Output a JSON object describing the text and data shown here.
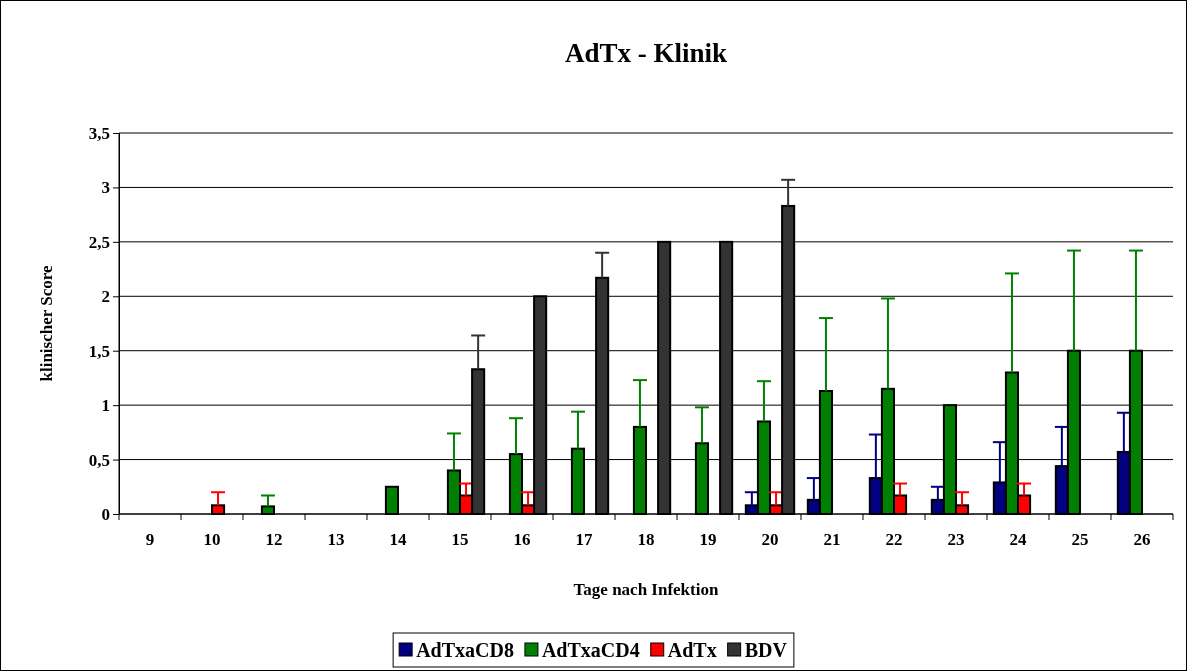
{
  "chart_data": {
    "type": "bar",
    "title": "AdTx - Klinik",
    "xlabel": "Tage nach Infektion",
    "ylabel": "klinischer Score",
    "categories": [
      "9",
      "10",
      "12",
      "13",
      "14",
      "15",
      "16",
      "17",
      "18",
      "19",
      "20",
      "21",
      "22",
      "23",
      "24",
      "25",
      "26"
    ],
    "series": [
      {
        "name": "AdTxaCD8",
        "color": "#000080",
        "values": [
          0,
          0,
          0,
          0,
          0,
          0,
          0,
          0,
          0,
          0,
          0.08,
          0.13,
          0.33,
          0.13,
          0.29,
          0.44,
          0.57
        ],
        "errors": [
          null,
          null,
          null,
          null,
          null,
          null,
          null,
          null,
          null,
          null,
          [
            0.08,
            0.2
          ],
          [
            0.13,
            0.33
          ],
          [
            0.33,
            0.73
          ],
          [
            0.13,
            0.25
          ],
          [
            0.29,
            0.66
          ],
          [
            0.44,
            0.8
          ],
          [
            0.57,
            0.93
          ]
        ]
      },
      {
        "name": "AdTxaCD4",
        "color": "#008000",
        "values": [
          0,
          0,
          0.07,
          0,
          0.25,
          0.4,
          0.55,
          0.6,
          0.8,
          0.65,
          0.85,
          1.13,
          1.15,
          1.0,
          1.3,
          1.5,
          1.5
        ],
        "errors": [
          null,
          null,
          [
            0.07,
            0.17
          ],
          null,
          null,
          [
            0.4,
            0.74
          ],
          [
            0.55,
            0.88
          ],
          [
            0.6,
            0.94
          ],
          [
            0.8,
            1.23
          ],
          [
            0.65,
            0.98
          ],
          [
            0.85,
            1.22
          ],
          [
            1.13,
            1.8
          ],
          [
            1.15,
            1.98
          ],
          null,
          [
            1.3,
            2.21
          ],
          [
            1.5,
            2.42
          ],
          [
            1.5,
            2.42
          ]
        ]
      },
      {
        "name": "AdTx",
        "color": "#ff0000",
        "values": [
          0,
          0.08,
          0,
          0,
          0,
          0.17,
          0.08,
          0,
          0,
          0,
          0.08,
          null,
          0.17,
          0.08,
          0.17,
          null,
          null
        ],
        "errors": [
          null,
          [
            0.08,
            0.2
          ],
          null,
          null,
          null,
          [
            0.17,
            0.28
          ],
          [
            0.08,
            0.2
          ],
          null,
          null,
          null,
          [
            0.08,
            0.2
          ],
          null,
          [
            0.17,
            0.28
          ],
          [
            0.08,
            0.2
          ],
          [
            0.17,
            0.28
          ],
          null,
          null
        ]
      },
      {
        "name": "BDV",
        "color": "#333333",
        "values": [
          0,
          0,
          0,
          0,
          0,
          1.33,
          2.0,
          2.17,
          2.5,
          2.5,
          2.83,
          null,
          null,
          null,
          null,
          null,
          null
        ],
        "errors": [
          null,
          null,
          null,
          null,
          null,
          [
            1.33,
            1.64
          ],
          null,
          [
            2.17,
            2.4
          ],
          null,
          null,
          [
            2.83,
            3.07
          ],
          null,
          null,
          null,
          null,
          null,
          null
        ]
      }
    ],
    "ylim": [
      0,
      3.5
    ],
    "yticks": [
      0,
      {
        "value": 0.5,
        "label": "0,5"
      },
      1,
      {
        "value": 1.5,
        "label": "1,5"
      },
      2,
      {
        "value": 2.5,
        "label": "2,5"
      },
      3,
      {
        "value": 3.5,
        "label": "3,5"
      }
    ],
    "grid": "y",
    "legend": "bottom"
  }
}
